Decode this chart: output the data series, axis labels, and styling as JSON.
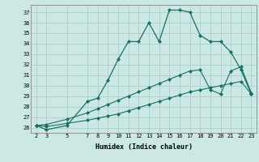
{
  "xlabel": "Humidex (Indice chaleur)",
  "ylabel": "",
  "bg_color": "#cce8e4",
  "grid_color": "#aad0cb",
  "line_color": "#1a6e60",
  "ylim": [
    25.5,
    37.7
  ],
  "yticks": [
    26,
    27,
    28,
    29,
    30,
    31,
    32,
    33,
    34,
    35,
    36,
    37
  ],
  "xticks": [
    2,
    3,
    5,
    7,
    8,
    9,
    10,
    11,
    12,
    13,
    14,
    15,
    16,
    17,
    18,
    19,
    20,
    21,
    22,
    23
  ],
  "line1_x": [
    2,
    3,
    5,
    7,
    8,
    9,
    10,
    11,
    12,
    13,
    14,
    15,
    16,
    17,
    18,
    19,
    20,
    21,
    22,
    23
  ],
  "line1_y": [
    26.2,
    25.8,
    26.2,
    28.5,
    28.8,
    30.5,
    32.5,
    34.2,
    34.2,
    36.0,
    34.2,
    37.2,
    37.2,
    37.0,
    34.8,
    34.2,
    34.2,
    33.2,
    31.5,
    29.2
  ],
  "line2_x": [
    2,
    3,
    5,
    7,
    8,
    9,
    10,
    11,
    12,
    13,
    14,
    15,
    16,
    17,
    18,
    19,
    20,
    21,
    22,
    23
  ],
  "line2_y": [
    26.2,
    26.3,
    26.8,
    27.4,
    27.8,
    28.2,
    28.6,
    29.0,
    29.4,
    29.8,
    30.2,
    30.6,
    31.0,
    31.4,
    31.5,
    29.6,
    29.2,
    31.4,
    31.8,
    29.3
  ],
  "line3_x": [
    2,
    3,
    5,
    7,
    8,
    9,
    10,
    11,
    12,
    13,
    14,
    15,
    16,
    17,
    18,
    19,
    20,
    21,
    22,
    23
  ],
  "line3_y": [
    26.2,
    26.1,
    26.4,
    26.7,
    26.9,
    27.1,
    27.3,
    27.6,
    27.9,
    28.2,
    28.5,
    28.8,
    29.1,
    29.4,
    29.6,
    29.8,
    30.0,
    30.2,
    30.4,
    29.2
  ]
}
